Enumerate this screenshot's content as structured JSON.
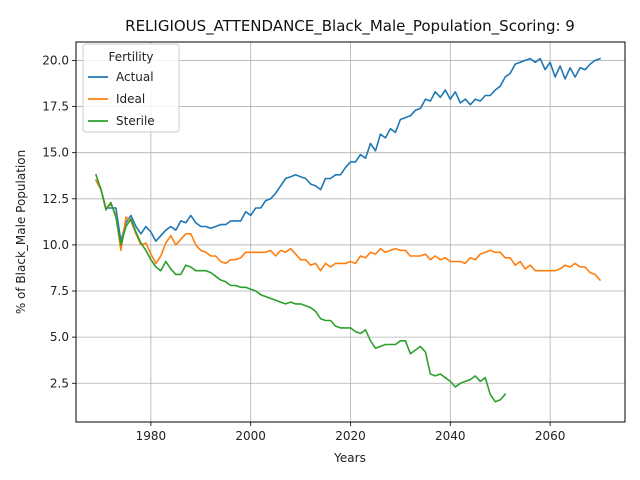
{
  "chart_data": {
    "type": "line",
    "title": "RELIGIOUS_ATTENDANCE_Black_Male_Population_Scoring: 9",
    "xlabel": "Years",
    "ylabel": "% of Black_Male Population",
    "xlim": [
      1965,
      2075
    ],
    "ylim": [
      0.4,
      21.0
    ],
    "xticks": [
      1980,
      2000,
      2020,
      2040,
      2060
    ],
    "yticks": [
      2.5,
      5.0,
      7.5,
      10.0,
      12.5,
      15.0,
      17.5,
      20.0
    ],
    "xtick_labels": [
      "1980",
      "2000",
      "2020",
      "2040",
      "2060"
    ],
    "ytick_labels": [
      "2.5",
      "5.0",
      "7.5",
      "10.0",
      "12.5",
      "15.0",
      "17.5",
      "20.0"
    ],
    "grid": true,
    "legend": {
      "title": "Fertility",
      "position": "top-left"
    },
    "series": [
      {
        "name": "Actual",
        "color": "#1f77b4",
        "x": [
          1969,
          1970,
          1971,
          1972,
          1973,
          1974,
          1975,
          1976,
          1977,
          1978,
          1979,
          1980,
          1981,
          1982,
          1983,
          1984,
          1985,
          1986,
          1987,
          1988,
          1989,
          1990,
          1991,
          1992,
          1993,
          1994,
          1995,
          1996,
          1997,
          1998,
          1999,
          2000,
          2001,
          2002,
          2003,
          2004,
          2005,
          2006,
          2007,
          2008,
          2009,
          2010,
          2011,
          2012,
          2013,
          2014,
          2015,
          2016,
          2017,
          2018,
          2019,
          2020,
          2021,
          2022,
          2023,
          2024,
          2025,
          2026,
          2027,
          2028,
          2029,
          2030,
          2031,
          2032,
          2033,
          2034,
          2035,
          2036,
          2037,
          2038,
          2039,
          2040,
          2041,
          2042,
          2043,
          2044,
          2045,
          2046,
          2047,
          2048,
          2049,
          2050,
          2051,
          2052,
          2053,
          2054,
          2055,
          2056,
          2057,
          2058,
          2059,
          2060,
          2061,
          2062,
          2063,
          2064,
          2065,
          2066,
          2067,
          2068,
          2069,
          2070
        ],
        "y": [
          13.5,
          13.0,
          12.0,
          12.0,
          12.0,
          10.2,
          11.2,
          11.6,
          11.0,
          10.6,
          11.0,
          10.7,
          10.2,
          10.5,
          10.8,
          11.0,
          10.8,
          11.3,
          11.2,
          11.6,
          11.2,
          11.0,
          11.0,
          10.9,
          11.0,
          11.1,
          11.1,
          11.3,
          11.3,
          11.3,
          11.8,
          11.6,
          12.0,
          12.0,
          12.4,
          12.5,
          12.8,
          13.2,
          13.6,
          13.7,
          13.8,
          13.7,
          13.6,
          13.3,
          13.2,
          13.0,
          13.6,
          13.6,
          13.8,
          13.8,
          14.2,
          14.5,
          14.5,
          14.9,
          14.7,
          15.5,
          15.1,
          16.0,
          15.8,
          16.3,
          16.1,
          16.8,
          16.9,
          17.0,
          17.3,
          17.4,
          17.9,
          17.8,
          18.3,
          18.0,
          18.4,
          17.9,
          18.3,
          17.7,
          17.9,
          17.6,
          17.9,
          17.8,
          18.1,
          18.1,
          18.4,
          18.6,
          19.1,
          19.3,
          19.8,
          19.9,
          20.0,
          20.1,
          19.9,
          20.1,
          19.5,
          19.9,
          19.1,
          19.7,
          19.0,
          19.6,
          19.1,
          19.6,
          19.5,
          19.8,
          20.0,
          20.1
        ]
      },
      {
        "name": "Ideal",
        "color": "#ff7f0e",
        "x": [
          1969,
          1970,
          1971,
          1972,
          1973,
          1974,
          1975,
          1976,
          1977,
          1978,
          1979,
          1980,
          1981,
          1982,
          1983,
          1984,
          1985,
          1986,
          1987,
          1988,
          1989,
          1990,
          1991,
          1992,
          1993,
          1994,
          1995,
          1996,
          1997,
          1998,
          1999,
          2000,
          2001,
          2002,
          2003,
          2004,
          2005,
          2006,
          2007,
          2008,
          2009,
          2010,
          2011,
          2012,
          2013,
          2014,
          2015,
          2016,
          2017,
          2018,
          2019,
          2020,
          2021,
          2022,
          2023,
          2024,
          2025,
          2026,
          2027,
          2028,
          2029,
          2030,
          2031,
          2032,
          2033,
          2034,
          2035,
          2036,
          2037,
          2038,
          2039,
          2040,
          2041,
          2042,
          2043,
          2044,
          2045,
          2046,
          2047,
          2048,
          2049,
          2050,
          2051,
          2052,
          2053,
          2054,
          2055,
          2056,
          2057,
          2058,
          2059,
          2060,
          2061,
          2062,
          2063,
          2064,
          2065,
          2066,
          2067,
          2068,
          2069,
          2070
        ],
        "y": [
          13.5,
          13.0,
          12.0,
          12.2,
          11.6,
          9.7,
          11.5,
          11.3,
          10.6,
          10.0,
          10.1,
          9.5,
          9.0,
          9.4,
          10.1,
          10.5,
          10.0,
          10.3,
          10.6,
          10.6,
          10.0,
          9.7,
          9.6,
          9.4,
          9.4,
          9.1,
          9.0,
          9.2,
          9.2,
          9.3,
          9.6,
          9.6,
          9.6,
          9.6,
          9.6,
          9.7,
          9.4,
          9.7,
          9.6,
          9.8,
          9.5,
          9.2,
          9.2,
          8.9,
          9.0,
          8.6,
          9.0,
          8.8,
          9.0,
          9.0,
          9.0,
          9.1,
          9.0,
          9.4,
          9.3,
          9.6,
          9.5,
          9.8,
          9.6,
          9.7,
          9.8,
          9.7,
          9.7,
          9.4,
          9.4,
          9.4,
          9.5,
          9.2,
          9.4,
          9.2,
          9.3,
          9.1,
          9.1,
          9.1,
          9.0,
          9.3,
          9.2,
          9.5,
          9.6,
          9.7,
          9.6,
          9.6,
          9.3,
          9.3,
          8.9,
          9.1,
          8.7,
          8.9,
          8.6,
          8.6,
          8.6,
          8.6,
          8.6,
          8.7,
          8.9,
          8.8,
          9.0,
          8.8,
          8.8,
          8.5,
          8.4,
          8.1
        ]
      },
      {
        "name": "Sterile",
        "color": "#2ca02c",
        "x": [
          1969,
          1970,
          1971,
          1972,
          1973,
          1974,
          1975,
          1976,
          1977,
          1978,
          1979,
          1980,
          1981,
          1982,
          1983,
          1984,
          1985,
          1986,
          1987,
          1988,
          1989,
          1990,
          1991,
          1992,
          1993,
          1994,
          1995,
          1996,
          1997,
          1998,
          1999,
          2000,
          2001,
          2002,
          2003,
          2004,
          2005,
          2006,
          2007,
          2008,
          2009,
          2010,
          2011,
          2012,
          2013,
          2014,
          2015,
          2016,
          2017,
          2018,
          2019,
          2020,
          2021,
          2022,
          2023,
          2024,
          2025,
          2026,
          2027,
          2028,
          2029,
          2030,
          2031,
          2032,
          2033,
          2034,
          2035,
          2036,
          2037,
          2038,
          2039,
          2040,
          2041,
          2042,
          2043,
          2044,
          2045,
          2046,
          2047,
          2048,
          2049,
          2050,
          2051
        ],
        "y": [
          13.8,
          13.0,
          11.9,
          12.3,
          11.5,
          10.0,
          11.0,
          11.4,
          10.7,
          10.1,
          9.7,
          9.2,
          8.8,
          8.6,
          9.1,
          8.7,
          8.4,
          8.4,
          8.9,
          8.8,
          8.6,
          8.6,
          8.6,
          8.5,
          8.3,
          8.1,
          8.0,
          7.8,
          7.8,
          7.7,
          7.7,
          7.6,
          7.5,
          7.3,
          7.2,
          7.1,
          7.0,
          6.9,
          6.8,
          6.9,
          6.8,
          6.8,
          6.7,
          6.6,
          6.4,
          6.0,
          5.9,
          5.9,
          5.6,
          5.5,
          5.5,
          5.5,
          5.3,
          5.2,
          5.4,
          4.8,
          4.4,
          4.5,
          4.6,
          4.6,
          4.6,
          4.8,
          4.8,
          4.1,
          4.3,
          4.5,
          4.2,
          3.0,
          2.9,
          3.0,
          2.8,
          2.6,
          2.3,
          2.5,
          2.6,
          2.7,
          2.9,
          2.6,
          2.8,
          1.9,
          1.5,
          1.6,
          1.9
        ]
      }
    ]
  }
}
